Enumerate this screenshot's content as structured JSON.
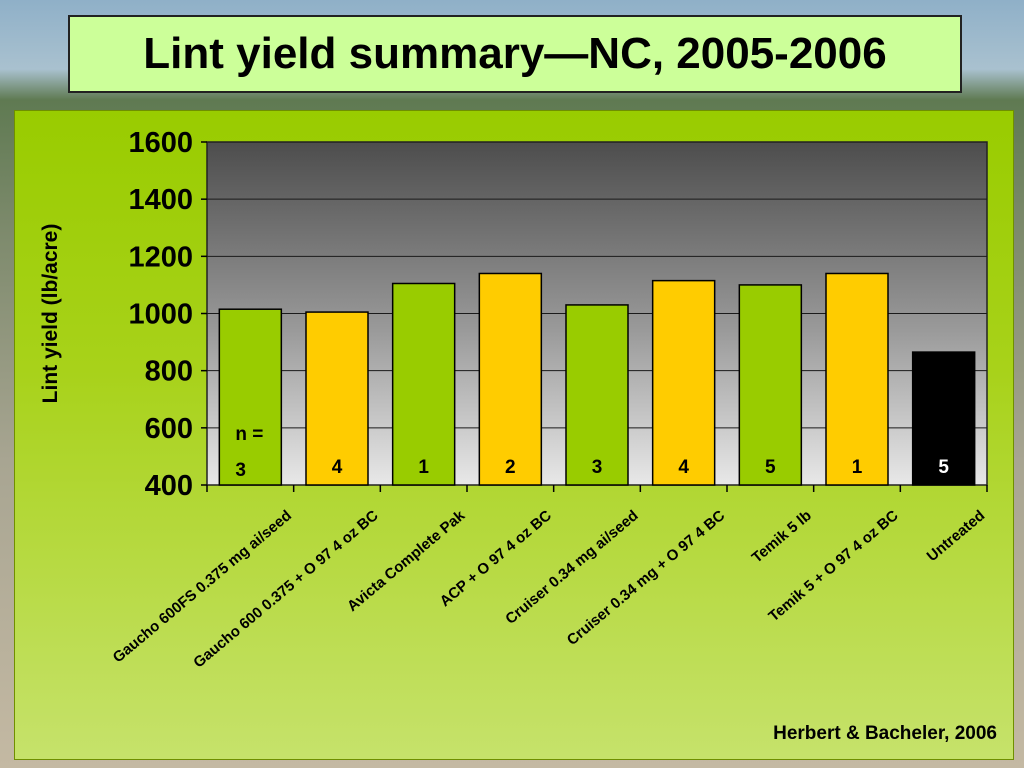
{
  "title": "Lint yield summary—NC, 2005-2006",
  "credit": "Herbert & Bacheler, 2006",
  "n_prefix": "n =",
  "colors": {
    "green": "#99cc00",
    "gold": "#ffcc00",
    "black": "#000000",
    "panel": "#99cc00",
    "title_box": "#ccff99"
  },
  "chart_data": {
    "type": "bar",
    "ylabel": "Lint yield (lb/acre)",
    "xlabel": "",
    "ylim": [
      400,
      1600
    ],
    "yticks": [
      400,
      600,
      800,
      1000,
      1200,
      1400,
      1600
    ],
    "grid": true,
    "categories": [
      "Gaucho 600FS 0.375 mg ai/seed",
      "Gaucho 600 0.375 + O 97 4 oz BC",
      "Avicta Complete Pak",
      "ACP + O 97 4 oz BC",
      "Cruiser 0.34 mg ai/seed",
      "Cruiser 0.34 mg + O 97 4 BC",
      "Temik 5 lb",
      "Temik 5 + O 97 4 oz BC",
      "Untreated"
    ],
    "values": [
      1015,
      1005,
      1105,
      1140,
      1030,
      1115,
      1100,
      1140,
      865
    ],
    "n": [
      "3",
      "4",
      "1",
      "2",
      "3",
      "4",
      "5",
      "1",
      "5"
    ],
    "bar_colors": [
      "green",
      "gold",
      "green",
      "gold",
      "green",
      "gold",
      "green",
      "gold",
      "black"
    ]
  }
}
